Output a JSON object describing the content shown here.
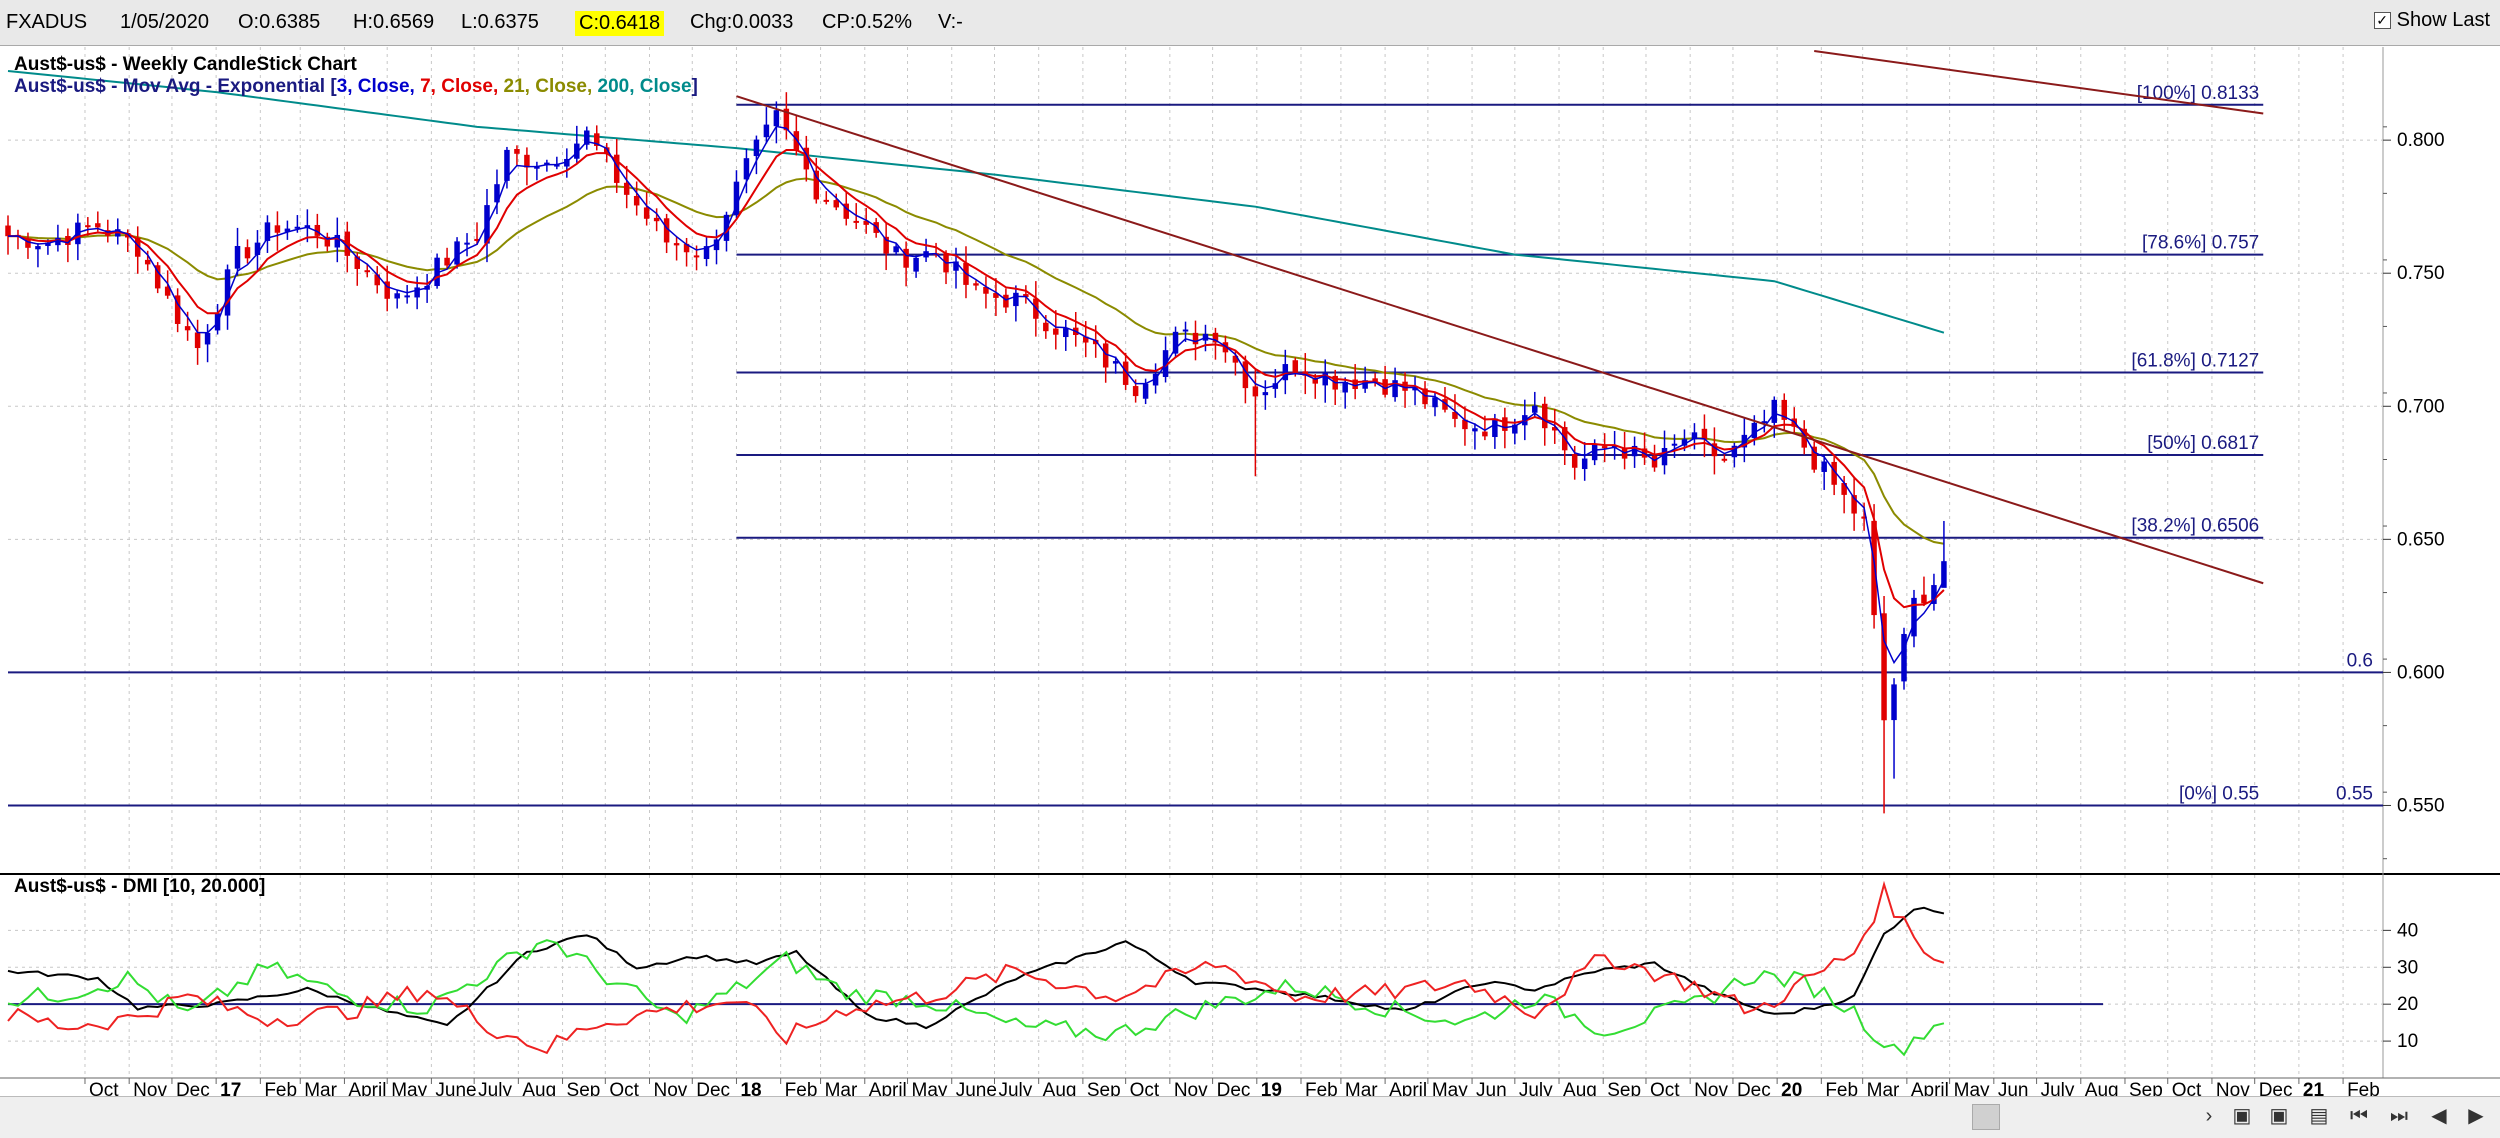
{
  "topbar": {
    "symbol": "FXADUS",
    "date": "1/05/2020",
    "open": "O:0.6385",
    "high": "H:0.6569",
    "low": "L:0.6375",
    "close": "C:0.6418",
    "change": "Chg:0.0033",
    "change_pct": "CP:0.52%",
    "volume": "V:-",
    "show_last_label": "Show Last",
    "show_last_checked": "✓"
  },
  "price_panel": {
    "title": "Aust$-us$ - Weekly CandleStick Chart",
    "ma_prefix": "Aust$-us$ - Mov Avg - Exponential [",
    "ma_items": [
      {
        "text": "3, Close, ",
        "color": "#0000cc"
      },
      {
        "text": "7, Close, ",
        "color": "#e00000"
      },
      {
        "text": "21, Close, ",
        "color": "#8b8b00"
      },
      {
        "text": "200, Close",
        "color": "#008b8b"
      }
    ],
    "ma_suffix": "]"
  },
  "dmi_panel": {
    "title": "Aust$-us$ - DMI [10, 20.000]"
  },
  "colors": {
    "bull": "#0000cc",
    "bear": "#e00000",
    "ema3": "#0000cc",
    "ema7": "#e00000",
    "ema21": "#8b8b00",
    "ema200": "#008b8b",
    "fib": "#1a1a80",
    "trend": "#8b1a1a",
    "dmi_plus": "#33dd33",
    "dmi_minus": "#ee2222",
    "adx": "#000000"
  },
  "chart_data": {
    "type": "candlestick",
    "timeframe": "weekly",
    "y_axis": {
      "range": [
        0.525,
        0.835
      ],
      "ticks": [
        "0.550",
        "0.600",
        "0.650",
        "0.700",
        "0.750",
        "0.800"
      ]
    },
    "dmi_axis": {
      "range": [
        0,
        55
      ],
      "ticks": [
        "10",
        "20",
        "30",
        "40"
      ],
      "threshold": 20
    },
    "x_axis": {
      "range": [
        "2016-08-08",
        "2021-03-01"
      ],
      "ticks": [
        {
          "label": "Oct",
          "date": "2016-10-01"
        },
        {
          "label": "Nov",
          "date": "2016-11-01"
        },
        {
          "label": "Dec",
          "date": "2016-12-01"
        },
        {
          "label": "17",
          "date": "2017-01-01",
          "bold": true
        },
        {
          "label": "Feb",
          "date": "2017-02-01"
        },
        {
          "label": "Mar",
          "date": "2017-03-01"
        },
        {
          "label": "April",
          "date": "2017-04-01"
        },
        {
          "label": "May",
          "date": "2017-05-01"
        },
        {
          "label": "June",
          "date": "2017-06-01"
        },
        {
          "label": "July",
          "date": "2017-07-01"
        },
        {
          "label": "Aug",
          "date": "2017-08-01"
        },
        {
          "label": "Sep",
          "date": "2017-09-01"
        },
        {
          "label": "Oct",
          "date": "2017-10-01"
        },
        {
          "label": "Nov",
          "date": "2017-11-01"
        },
        {
          "label": "Dec",
          "date": "2017-12-01"
        },
        {
          "label": "18",
          "date": "2018-01-01",
          "bold": true
        },
        {
          "label": "Feb",
          "date": "2018-02-01"
        },
        {
          "label": "Mar",
          "date": "2018-03-01"
        },
        {
          "label": "April",
          "date": "2018-04-01"
        },
        {
          "label": "May",
          "date": "2018-05-01"
        },
        {
          "label": "June",
          "date": "2018-06-01"
        },
        {
          "label": "July",
          "date": "2018-07-01"
        },
        {
          "label": "Aug",
          "date": "2018-08-01"
        },
        {
          "label": "Sep",
          "date": "2018-09-01"
        },
        {
          "label": "Oct",
          "date": "2018-10-01"
        },
        {
          "label": "Nov",
          "date": "2018-11-01"
        },
        {
          "label": "Dec",
          "date": "2018-12-01"
        },
        {
          "label": "19",
          "date": "2019-01-01",
          "bold": true
        },
        {
          "label": "Feb",
          "date": "2019-02-01"
        },
        {
          "label": "Mar",
          "date": "2019-03-01"
        },
        {
          "label": "April",
          "date": "2019-04-01"
        },
        {
          "label": "May",
          "date": "2019-05-01"
        },
        {
          "label": "Jun",
          "date": "2019-06-01"
        },
        {
          "label": "July",
          "date": "2019-07-01"
        },
        {
          "label": "Aug",
          "date": "2019-08-01"
        },
        {
          "label": "Sep",
          "date": "2019-09-01"
        },
        {
          "label": "Oct",
          "date": "2019-10-01"
        },
        {
          "label": "Nov",
          "date": "2019-11-01"
        },
        {
          "label": "Dec",
          "date": "2019-12-01"
        },
        {
          "label": "20",
          "date": "2020-01-01",
          "bold": true
        },
        {
          "label": "Feb",
          "date": "2020-02-01"
        },
        {
          "label": "Mar",
          "date": "2020-03-01"
        },
        {
          "label": "April",
          "date": "2020-04-01"
        },
        {
          "label": "May",
          "date": "2020-05-01"
        },
        {
          "label": "Jun",
          "date": "2020-06-01"
        },
        {
          "label": "July",
          "date": "2020-07-01"
        },
        {
          "label": "Aug",
          "date": "2020-08-01"
        },
        {
          "label": "Sep",
          "date": "2020-09-01"
        },
        {
          "label": "Oct",
          "date": "2020-10-01"
        },
        {
          "label": "Nov",
          "date": "2020-11-01"
        },
        {
          "label": "Dec",
          "date": "2020-12-01"
        },
        {
          "label": "21",
          "date": "2021-01-01",
          "bold": true
        },
        {
          "label": "Feb",
          "date": "2021-02-01"
        }
      ]
    },
    "close_anchors": [
      [
        "2016-08-08",
        0.764
      ],
      [
        "2016-09-05",
        0.762
      ],
      [
        "2016-10-10",
        0.768
      ],
      [
        "2016-11-07",
        0.76
      ],
      [
        "2016-11-28",
        0.74
      ],
      [
        "2016-12-19",
        0.722
      ],
      [
        "2017-01-16",
        0.756
      ],
      [
        "2017-02-13",
        0.768
      ],
      [
        "2017-03-13",
        0.766
      ],
      [
        "2017-04-10",
        0.754
      ],
      [
        "2017-05-08",
        0.74
      ],
      [
        "2017-06-05",
        0.752
      ],
      [
        "2017-07-03",
        0.765
      ],
      [
        "2017-07-24",
        0.794
      ],
      [
        "2017-08-21",
        0.792
      ],
      [
        "2017-09-18",
        0.802
      ],
      [
        "2017-10-16",
        0.78
      ],
      [
        "2017-11-13",
        0.762
      ],
      [
        "2017-12-11",
        0.758
      ],
      [
        "2018-01-08",
        0.79
      ],
      [
        "2018-01-29",
        0.808
      ],
      [
        "2018-02-26",
        0.782
      ],
      [
        "2018-03-26",
        0.77
      ],
      [
        "2018-04-23",
        0.756
      ],
      [
        "2018-05-21",
        0.758
      ],
      [
        "2018-06-18",
        0.742
      ],
      [
        "2018-07-16",
        0.74
      ],
      [
        "2018-08-13",
        0.73
      ],
      [
        "2018-09-10",
        0.72
      ],
      [
        "2018-10-08",
        0.708
      ],
      [
        "2018-11-05",
        0.725
      ],
      [
        "2018-12-03",
        0.728
      ],
      [
        "2018-12-31",
        0.705
      ],
      [
        "2019-01-28",
        0.716
      ],
      [
        "2019-02-25",
        0.71
      ],
      [
        "2019-03-25",
        0.71
      ],
      [
        "2019-04-22",
        0.705
      ],
      [
        "2019-05-20",
        0.694
      ],
      [
        "2019-06-17",
        0.692
      ],
      [
        "2019-07-15",
        0.702
      ],
      [
        "2019-08-12",
        0.678
      ],
      [
        "2019-09-09",
        0.686
      ],
      [
        "2019-10-07",
        0.677
      ],
      [
        "2019-10-28",
        0.688
      ],
      [
        "2019-11-25",
        0.68
      ],
      [
        "2019-12-16",
        0.69
      ],
      [
        "2019-12-30",
        0.698
      ],
      [
        "2020-01-20",
        0.685
      ],
      [
        "2020-02-10",
        0.67
      ],
      [
        "2020-03-02",
        0.656
      ],
      [
        "2020-03-16",
        0.582
      ],
      [
        "2020-03-23",
        0.596
      ],
      [
        "2020-04-06",
        0.626
      ],
      [
        "2020-04-20",
        0.634
      ],
      [
        "2020-05-01",
        0.6418
      ]
    ],
    "fibonacci": [
      {
        "label": "[100%] 0.8133",
        "value": 0.8133
      },
      {
        "label": "[78.6%] 0.757",
        "value": 0.757
      },
      {
        "label": "[61.8%] 0.7127",
        "value": 0.7127
      },
      {
        "label": "[50%] 0.6817",
        "value": 0.6817
      },
      {
        "label": "[38.2%] 0.6506",
        "value": 0.6506
      },
      {
        "label": "[0%] 0.55",
        "value": 0.55
      }
    ],
    "horizontal_lines": [
      {
        "label": "0.6",
        "value": 0.6
      },
      {
        "label": "0.55",
        "value": 0.55
      }
    ],
    "trendlines": [
      {
        "from": [
          "2018-01-01",
          0.8165
        ],
        "to": [
          "2020-12-07",
          0.6335
        ]
      },
      {
        "from": [
          "2020-01-27",
          0.8335
        ],
        "to": [
          "2020-12-07",
          0.81
        ]
      }
    ],
    "ema200_anchors": [
      [
        "2016-08-08",
        0.826
      ],
      [
        "2017-01-02",
        0.818
      ],
      [
        "2017-07-03",
        0.805
      ],
      [
        "2018-01-01",
        0.797
      ],
      [
        "2018-07-02",
        0.787
      ],
      [
        "2018-12-31",
        0.775
      ],
      [
        "2019-07-01",
        0.757
      ],
      [
        "2019-12-30",
        0.747
      ],
      [
        "2020-05-01",
        0.727
      ]
    ],
    "dmi_series": [
      {
        "name": "ADX",
        "anchors": [
          [
            "2016-08-08",
            29
          ],
          [
            "2016-10-10",
            27
          ],
          [
            "2016-11-07",
            19
          ],
          [
            "2017-01-02",
            20
          ],
          [
            "2017-03-06",
            24
          ],
          [
            "2017-05-01",
            18
          ],
          [
            "2017-06-12",
            14
          ],
          [
            "2017-08-07",
            34
          ],
          [
            "2017-09-18",
            39
          ],
          [
            "2017-10-23",
            30
          ],
          [
            "2017-12-04",
            33
          ],
          [
            "2018-01-15",
            31
          ],
          [
            "2018-02-12",
            34
          ],
          [
            "2018-04-02",
            17
          ],
          [
            "2018-05-14",
            14
          ],
          [
            "2018-07-16",
            27
          ],
          [
            "2018-10-01",
            37
          ],
          [
            "2018-11-19",
            26
          ],
          [
            "2019-01-07",
            24
          ],
          [
            "2019-03-04",
            21
          ],
          [
            "2019-04-15",
            18
          ],
          [
            "2019-06-10",
            26
          ],
          [
            "2019-07-15",
            24
          ],
          [
            "2019-08-26",
            29
          ],
          [
            "2019-10-07",
            31
          ],
          [
            "2019-11-18",
            23
          ],
          [
            "2019-12-30",
            17
          ],
          [
            "2020-01-27",
            19
          ],
          [
            "2020-02-24",
            22
          ],
          [
            "2020-03-16",
            39
          ],
          [
            "2020-04-06",
            46
          ],
          [
            "2020-05-01",
            45
          ]
        ]
      },
      {
        "name": "+DI",
        "anchors": [
          [
            "2016-08-08",
            21
          ],
          [
            "2016-09-19",
            23
          ],
          [
            "2016-10-31",
            27
          ],
          [
            "2016-12-12",
            17
          ],
          [
            "2017-02-06",
            30
          ],
          [
            "2017-04-03",
            22
          ],
          [
            "2017-05-29",
            19
          ],
          [
            "2017-07-17",
            30
          ],
          [
            "2017-08-21",
            38
          ],
          [
            "2017-09-25",
            29
          ],
          [
            "2017-11-20",
            16
          ],
          [
            "2018-01-01",
            24
          ],
          [
            "2018-02-05",
            32
          ],
          [
            "2018-03-19",
            23
          ],
          [
            "2018-05-14",
            21
          ],
          [
            "2018-07-16",
            14
          ],
          [
            "2018-09-24",
            12
          ],
          [
            "2018-12-03",
            20
          ],
          [
            "2019-01-28",
            25
          ],
          [
            "2019-04-01",
            19
          ],
          [
            "2019-05-27",
            15
          ],
          [
            "2019-07-15",
            22
          ],
          [
            "2019-09-02",
            13
          ],
          [
            "2019-11-04",
            20
          ],
          [
            "2019-12-16",
            28
          ],
          [
            "2020-01-20",
            26
          ],
          [
            "2020-02-24",
            18
          ],
          [
            "2020-03-23",
            7
          ],
          [
            "2020-05-01",
            17
          ]
        ]
      },
      {
        "name": "-DI",
        "anchors": [
          [
            "2016-08-08",
            17
          ],
          [
            "2016-09-19",
            14
          ],
          [
            "2016-10-31",
            16
          ],
          [
            "2016-12-12",
            22
          ],
          [
            "2017-02-06",
            16
          ],
          [
            "2017-04-03",
            18
          ],
          [
            "2017-05-29",
            24
          ],
          [
            "2017-07-17",
            13
          ],
          [
            "2017-08-21",
            8
          ],
          [
            "2017-09-25",
            15
          ],
          [
            "2017-11-20",
            19
          ],
          [
            "2018-01-01",
            21
          ],
          [
            "2018-02-05",
            11
          ],
          [
            "2018-03-19",
            19
          ],
          [
            "2018-05-14",
            22
          ],
          [
            "2018-07-16",
            29
          ],
          [
            "2018-09-24",
            22
          ],
          [
            "2018-12-03",
            31
          ],
          [
            "2019-01-28",
            22
          ],
          [
            "2019-04-01",
            23
          ],
          [
            "2019-05-27",
            26
          ],
          [
            "2019-07-15",
            18
          ],
          [
            "2019-09-02",
            33
          ],
          [
            "2019-11-04",
            25
          ],
          [
            "2019-12-16",
            18
          ],
          [
            "2020-01-20",
            26
          ],
          [
            "2020-02-24",
            34
          ],
          [
            "2020-03-16",
            50
          ],
          [
            "2020-04-06",
            38
          ],
          [
            "2020-05-01",
            30
          ]
        ]
      }
    ]
  }
}
